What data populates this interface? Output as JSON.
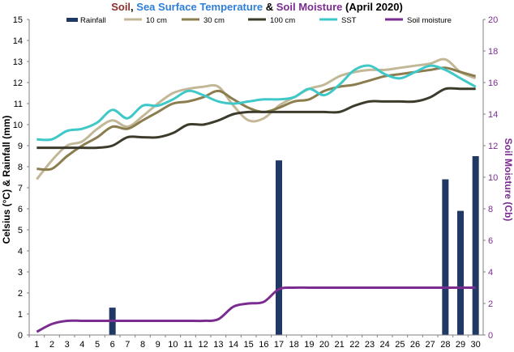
{
  "chart_data": {
    "type": "line",
    "title_parts": [
      {
        "text": "Soil",
        "color": "#8b2f2f"
      },
      {
        "text": ", ",
        "color": "#000000"
      },
      {
        "text": "Sea Surface Temperature",
        "color": "#2f7fd8"
      },
      {
        "text": " & ",
        "color": "#000000"
      },
      {
        "text": "Soil Moisture",
        "color": "#7b2c91"
      },
      {
        "text": " (April 2020)",
        "color": "#000000"
      }
    ],
    "ylabel": "Celsius (°C) & Rainfall (mm)",
    "y2label": "Soil Moisture (Cb)",
    "x": [
      1,
      2,
      3,
      4,
      5,
      6,
      7,
      8,
      9,
      10,
      11,
      12,
      13,
      14,
      15,
      16,
      17,
      18,
      19,
      20,
      21,
      22,
      23,
      24,
      25,
      26,
      27,
      28,
      29,
      30
    ],
    "ylim": [
      0,
      15
    ],
    "yticks": [
      0,
      1,
      2,
      3,
      4,
      5,
      6,
      7,
      8,
      9,
      10,
      11,
      12,
      13,
      14,
      15
    ],
    "y2lim": [
      0,
      20
    ],
    "y2ticks": [
      0,
      2,
      4,
      6,
      8,
      10,
      12,
      14,
      16,
      18,
      20
    ],
    "legend_position": "top",
    "series": [
      {
        "name": "Rainfall",
        "kind": "bar",
        "axis": "left",
        "color": "#1f3864",
        "values": [
          0,
          0,
          0,
          0,
          0,
          1.3,
          0,
          0,
          0,
          0,
          0,
          0,
          0,
          0,
          0,
          0,
          8.3,
          0,
          0,
          0,
          0,
          0,
          0,
          0,
          0,
          0,
          0,
          7.4,
          5.9,
          8.5
        ]
      },
      {
        "name": "10 cm",
        "kind": "line",
        "axis": "left",
        "color": "#c2b897",
        "values": [
          7.4,
          8.3,
          9.0,
          9.2,
          9.8,
          10.2,
          9.9,
          10.4,
          11.0,
          11.5,
          11.7,
          11.8,
          11.8,
          10.9,
          10.2,
          10.3,
          10.9,
          11.3,
          11.7,
          11.9,
          12.3,
          12.5,
          12.6,
          12.6,
          12.7,
          12.8,
          12.9,
          13.1,
          12.5,
          12.2
        ]
      },
      {
        "name": "30 cm",
        "kind": "line",
        "axis": "left",
        "color": "#8c7d4f",
        "values": [
          7.9,
          7.9,
          8.5,
          9.0,
          9.4,
          9.9,
          9.8,
          10.2,
          10.6,
          11.0,
          11.1,
          11.3,
          11.6,
          11.2,
          10.8,
          10.6,
          10.8,
          11.1,
          11.2,
          11.6,
          11.8,
          11.9,
          12.1,
          12.3,
          12.4,
          12.5,
          12.6,
          12.7,
          12.5,
          12.3
        ]
      },
      {
        "name": "100 cm",
        "kind": "line",
        "axis": "left",
        "color": "#3d3b2c",
        "values": [
          8.9,
          8.9,
          8.9,
          8.9,
          8.9,
          9.0,
          9.4,
          9.4,
          9.4,
          9.6,
          10.0,
          10.0,
          10.2,
          10.5,
          10.6,
          10.6,
          10.6,
          10.6,
          10.6,
          10.6,
          10.6,
          10.9,
          11.1,
          11.1,
          11.1,
          11.1,
          11.3,
          11.7,
          11.7,
          11.7
        ]
      },
      {
        "name": "SST",
        "kind": "line",
        "axis": "left",
        "color": "#3ec8c8",
        "values": [
          9.3,
          9.3,
          9.7,
          9.8,
          10.1,
          10.7,
          10.3,
          10.9,
          10.9,
          11.2,
          11.6,
          11.4,
          11.1,
          11.0,
          11.1,
          11.2,
          11.2,
          11.3,
          11.7,
          11.4,
          11.9,
          12.6,
          12.8,
          12.4,
          12.2,
          12.5,
          12.8,
          12.6,
          12.2,
          11.8
        ]
      },
      {
        "name": "Soil moisture",
        "kind": "line",
        "axis": "right",
        "color": "#7b2c91",
        "values": [
          0.2,
          0.7,
          0.9,
          0.9,
          0.9,
          0.9,
          0.9,
          0.9,
          0.9,
          0.9,
          0.9,
          0.9,
          1.0,
          1.8,
          2.0,
          2.1,
          2.9,
          3.0,
          3.0,
          3.0,
          3.0,
          3.0,
          3.0,
          3.0,
          3.0,
          3.0,
          3.0,
          3.0,
          3.0,
          3.0
        ]
      }
    ]
  }
}
